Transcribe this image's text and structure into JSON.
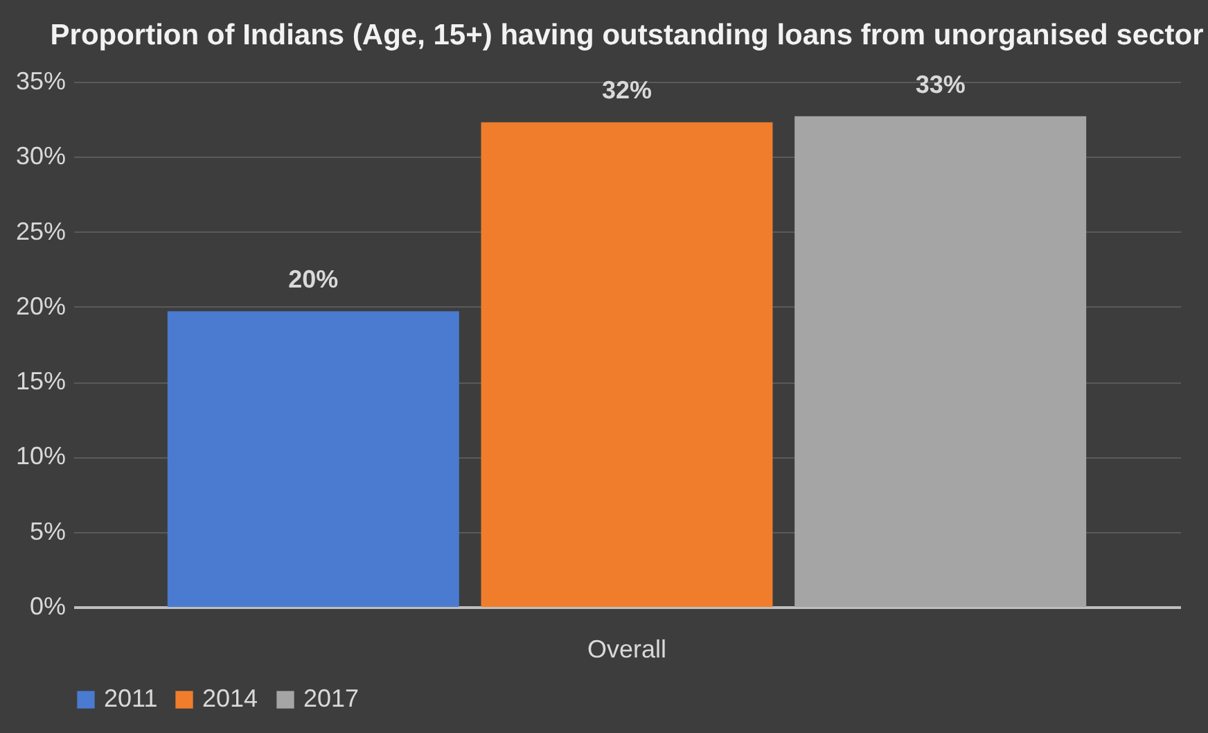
{
  "chart_data": {
    "type": "bar",
    "title": "Proportion of Indians (Age, 15+) having\noutstanding loans from unorganised sector",
    "categories": [
      "Overall"
    ],
    "series": [
      {
        "name": "2011",
        "color": "#4a7bd0",
        "values": [
          19.7
        ],
        "value_labels": [
          "20%"
        ]
      },
      {
        "name": "2014",
        "color": "#f07d2c",
        "values": [
          32.3
        ],
        "value_labels": [
          "32%"
        ]
      },
      {
        "name": "2017",
        "color": "#a5a5a5",
        "values": [
          32.7
        ],
        "value_labels": [
          "33%"
        ]
      }
    ],
    "ylim": [
      0,
      35
    ],
    "yticks": [
      {
        "value": 0,
        "label": "0%"
      },
      {
        "value": 5,
        "label": "5%"
      },
      {
        "value": 10,
        "label": "10%"
      },
      {
        "value": 15,
        "label": "15%"
      },
      {
        "value": 20,
        "label": "20%"
      },
      {
        "value": 25,
        "label": "25%"
      },
      {
        "value": 30,
        "label": "30%"
      },
      {
        "value": 35,
        "label": "35%"
      }
    ],
    "grid": "y",
    "legend": "bottom"
  }
}
